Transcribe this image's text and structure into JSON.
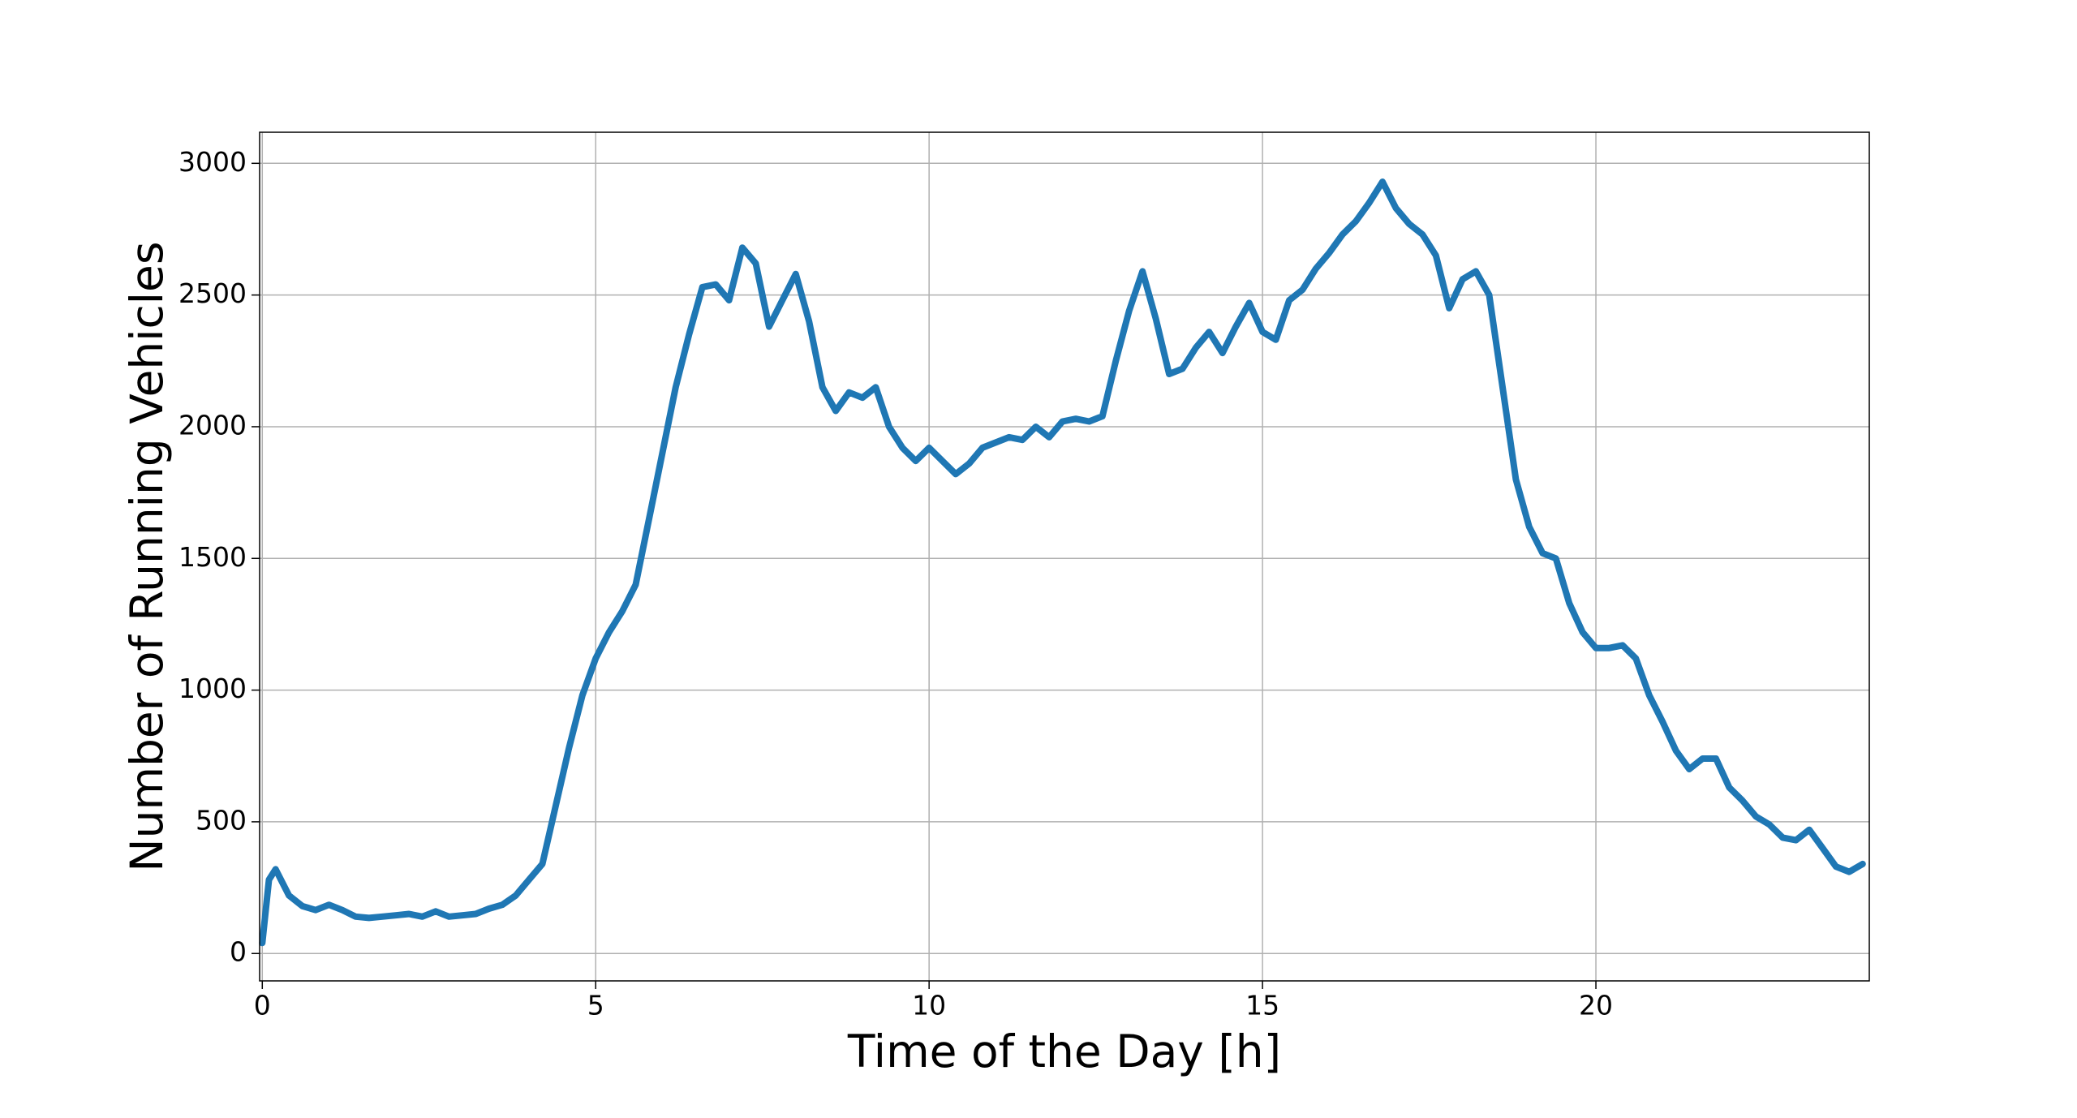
{
  "chart_data": {
    "type": "line",
    "xlabel": "Time of the Day [h]",
    "ylabel": "Number of Running Vehicles",
    "x": [
      0,
      0.1,
      0.2,
      0.4,
      0.6,
      0.8,
      1.0,
      1.2,
      1.4,
      1.6,
      1.8,
      2.0,
      2.2,
      2.4,
      2.6,
      2.8,
      3.0,
      3.2,
      3.4,
      3.6,
      3.8,
      4.0,
      4.2,
      4.4,
      4.6,
      4.8,
      5.0,
      5.2,
      5.4,
      5.6,
      5.8,
      6.0,
      6.2,
      6.4,
      6.6,
      6.8,
      7.0,
      7.2,
      7.4,
      7.6,
      7.8,
      8.0,
      8.2,
      8.4,
      8.6,
      8.8,
      9.0,
      9.2,
      9.4,
      9.6,
      9.8,
      10.0,
      10.2,
      10.4,
      10.6,
      10.8,
      11.0,
      11.2,
      11.4,
      11.6,
      11.8,
      12.0,
      12.2,
      12.4,
      12.6,
      12.8,
      13.0,
      13.2,
      13.4,
      13.6,
      13.8,
      14.0,
      14.2,
      14.4,
      14.6,
      14.8,
      15.0,
      15.2,
      15.4,
      15.6,
      15.8,
      16.0,
      16.2,
      16.4,
      16.6,
      16.8,
      17.0,
      17.2,
      17.4,
      17.6,
      17.8,
      18.0,
      18.2,
      18.4,
      18.6,
      18.8,
      19.0,
      19.2,
      19.4,
      19.6,
      19.8,
      20.0,
      20.2,
      20.4,
      20.6,
      20.8,
      21.0,
      21.2,
      21.4,
      21.6,
      21.8,
      22.0,
      22.2,
      22.4,
      22.6,
      22.8,
      23.0,
      23.2,
      23.4,
      23.6,
      23.8,
      24.0
    ],
    "series": [
      {
        "name": "vehicles",
        "color": "#1f77b4",
        "values": [
          40,
          280,
          320,
          220,
          180,
          165,
          185,
          165,
          140,
          135,
          140,
          145,
          150,
          140,
          160,
          140,
          145,
          150,
          170,
          185,
          220,
          280,
          340,
          560,
          780,
          980,
          1120,
          1220,
          1300,
          1400,
          1650,
          1900,
          2150,
          2350,
          2530,
          2540,
          2480,
          2680,
          2620,
          2380,
          2480,
          2580,
          2400,
          2150,
          2060,
          2130,
          2110,
          2150,
          2000,
          1920,
          1870,
          1920,
          1870,
          1820,
          1860,
          1920,
          1940,
          1960,
          1950,
          2000,
          1960,
          2020,
          2030,
          2020,
          2040,
          2250,
          2440,
          2590,
          2410,
          2200,
          2220,
          2300,
          2360,
          2280,
          2380,
          2470,
          2360,
          2330,
          2480,
          2520,
          2600,
          2660,
          2730,
          2780,
          2850,
          2930,
          2830,
          2770,
          2730,
          2650,
          2450,
          2560,
          2590,
          2500,
          2150,
          1800,
          1620,
          1520,
          1500,
          1330,
          1220,
          1160,
          1160,
          1170,
          1120,
          980,
          880,
          770,
          700,
          740,
          740,
          630,
          580,
          520,
          490,
          440,
          430,
          470,
          400,
          330,
          310,
          340
        ]
      }
    ],
    "xlim": [
      -0.04,
      24.1
    ],
    "ylim": [
      -104,
      3118
    ],
    "xticks": [
      0,
      5,
      10,
      15,
      20
    ],
    "yticks": [
      0,
      500,
      1000,
      1500,
      2000,
      2500,
      3000
    ],
    "grid": true
  }
}
